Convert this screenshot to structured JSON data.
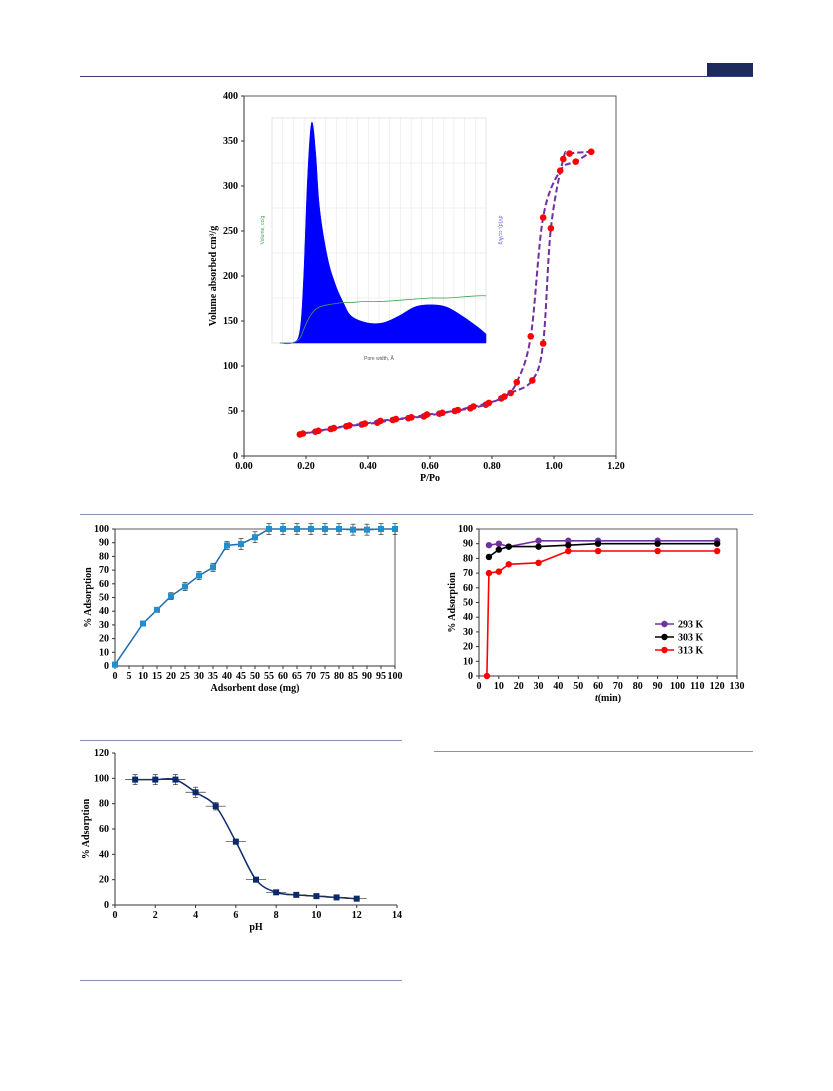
{
  "colors": {
    "header": "#1f2a5c",
    "desorption_line": "#7030a0",
    "points": "#ff0000",
    "pore_fill": "#0000ff",
    "dose": "#1f8fd0",
    "dose_line": "#1f6fb0",
    "ph": "#0b2a6e",
    "k293": "#7030a0",
    "k303": "#000000",
    "k313": "#ff0000"
  },
  "chart_data": [
    {
      "type": "line",
      "name": "isotherm",
      "xlabel": "P/Po",
      "ylabel": "Volume absorbed cm³/g",
      "xlim": [
        0.0,
        1.2
      ],
      "ylim": [
        0,
        400
      ],
      "xticks": [
        "0.00",
        "0.20",
        "0.40",
        "0.60",
        "0.80",
        "1.00",
        "1.20"
      ],
      "yticks": [
        "0",
        "50",
        "100",
        "150",
        "200",
        "250",
        "300",
        "350",
        "400"
      ],
      "series": [
        {
          "x": [
            0.18,
            0.23,
            0.28,
            0.33,
            0.38,
            0.43,
            0.48,
            0.53,
            0.58,
            0.63,
            0.68,
            0.73,
            0.78,
            0.83,
            0.86,
            0.93,
            0.965,
            0.99,
            1.03,
            1.05,
            1.12
          ],
          "y": [
            24,
            27,
            30,
            33,
            35,
            37,
            40,
            42,
            44,
            47,
            50,
            53,
            57,
            64,
            70,
            84,
            125,
            253,
            330,
            336,
            338
          ]
        },
        {
          "x": [
            0.19,
            0.24,
            0.29,
            0.34,
            0.39,
            0.44,
            0.49,
            0.54,
            0.59,
            0.64,
            0.69,
            0.74,
            0.79,
            0.84,
            0.88,
            0.925,
            0.965,
            1.02,
            1.07,
            1.12
          ],
          "y": [
            25,
            28,
            31,
            34,
            36,
            39,
            41,
            43,
            46,
            48,
            51,
            55,
            59,
            66,
            82,
            133,
            265,
            317,
            327,
            338
          ]
        }
      ],
      "inset": {
        "xlabel": "Pore width, Å",
        "ylabel_left": "Volume, cc/g",
        "ylabel_right": "dV(d), cc/Å/g",
        "pore_width": [
          12,
          15,
          17,
          18,
          19,
          20,
          21,
          22,
          24,
          26,
          28,
          30,
          34,
          38,
          42,
          46,
          50,
          54,
          58,
          62,
          64
        ],
        "dv": [
          0,
          0,
          5,
          30,
          75,
          98,
          85,
          60,
          38,
          26,
          18,
          12,
          9,
          9,
          12,
          16,
          17,
          16,
          12,
          7,
          4
        ],
        "cumulative_volume": [
          0,
          0,
          2,
          6,
          10,
          13,
          15,
          16,
          17,
          17.5,
          18,
          18,
          18.5,
          18.5,
          19,
          19.5,
          20,
          20,
          20.5,
          21,
          21
        ]
      }
    },
    {
      "type": "line",
      "name": "dose",
      "xlabel": "Adsorbent dose (mg)",
      "ylabel": "% Adsorption",
      "xlim": [
        0,
        100
      ],
      "ylim": [
        0,
        100
      ],
      "xticks": [
        "0",
        "5",
        "10",
        "15",
        "20",
        "25",
        "30",
        "35",
        "40",
        "45",
        "50",
        "55",
        "60",
        "65",
        "70",
        "75",
        "80",
        "85",
        "90",
        "95",
        "100"
      ],
      "yticks": [
        "0",
        "10",
        "20",
        "30",
        "40",
        "50",
        "60",
        "70",
        "80",
        "90",
        "100"
      ],
      "x": [
        0,
        10,
        15,
        20,
        25,
        30,
        35,
        40,
        45,
        50,
        55,
        60,
        65,
        70,
        75,
        80,
        85,
        90,
        95,
        100
      ],
      "y": [
        1,
        31,
        41,
        51,
        58,
        66,
        72,
        88,
        89,
        94,
        100,
        100,
        100,
        100,
        100,
        100,
        99.5,
        99.5,
        100,
        100
      ],
      "err": [
        0,
        1,
        1.5,
        2.5,
        3,
        3,
        3,
        3,
        4,
        4,
        4,
        4,
        4,
        4,
        4,
        4,
        4,
        4,
        4,
        4
      ]
    },
    {
      "type": "line",
      "name": "time",
      "xlabel": "t(min)",
      "ylabel": "% Adsorption",
      "xlim": [
        0,
        130
      ],
      "ylim": [
        0,
        100
      ],
      "xticks": [
        "0",
        "10",
        "20",
        "30",
        "40",
        "50",
        "60",
        "70",
        "80",
        "90",
        "100",
        "110",
        "120",
        "130"
      ],
      "yticks": [
        "0",
        "10",
        "20",
        "30",
        "40",
        "50",
        "60",
        "70",
        "80",
        "90",
        "100"
      ],
      "legend_position": "right",
      "series": [
        {
          "name": "293 K",
          "x": [
            5,
            10,
            15,
            30,
            45,
            60,
            90,
            120
          ],
          "y": [
            89,
            90,
            88,
            92,
            92,
            92,
            92,
            92
          ]
        },
        {
          "name": "303 K",
          "x": [
            5,
            10,
            15,
            30,
            45,
            60,
            90,
            120
          ],
          "y": [
            81,
            86,
            88,
            88,
            89,
            90,
            90,
            90
          ]
        },
        {
          "name": "313 K",
          "x": [
            4,
            5,
            10,
            15,
            30,
            45,
            60,
            90,
            120
          ],
          "y": [
            0,
            70,
            71,
            76,
            77,
            85,
            85,
            85,
            85
          ]
        }
      ]
    },
    {
      "type": "line",
      "name": "ph",
      "xlabel": "pH",
      "ylabel": "% Adsorption",
      "xlim": [
        0,
        14
      ],
      "ylim": [
        0,
        120
      ],
      "xticks": [
        "0",
        "2",
        "4",
        "6",
        "8",
        "10",
        "12",
        "14"
      ],
      "yticks": [
        "0",
        "20",
        "40",
        "60",
        "80",
        "100",
        "120"
      ],
      "x": [
        1,
        2,
        3,
        4,
        5,
        6,
        7,
        8,
        9,
        10,
        11,
        12
      ],
      "y": [
        99,
        99,
        99,
        89,
        78,
        50,
        20,
        10,
        8,
        7,
        6,
        5
      ],
      "err": [
        4,
        4,
        4,
        4,
        3,
        2,
        1.5,
        1,
        0.5,
        0.5,
        0.5,
        0.5
      ]
    }
  ]
}
